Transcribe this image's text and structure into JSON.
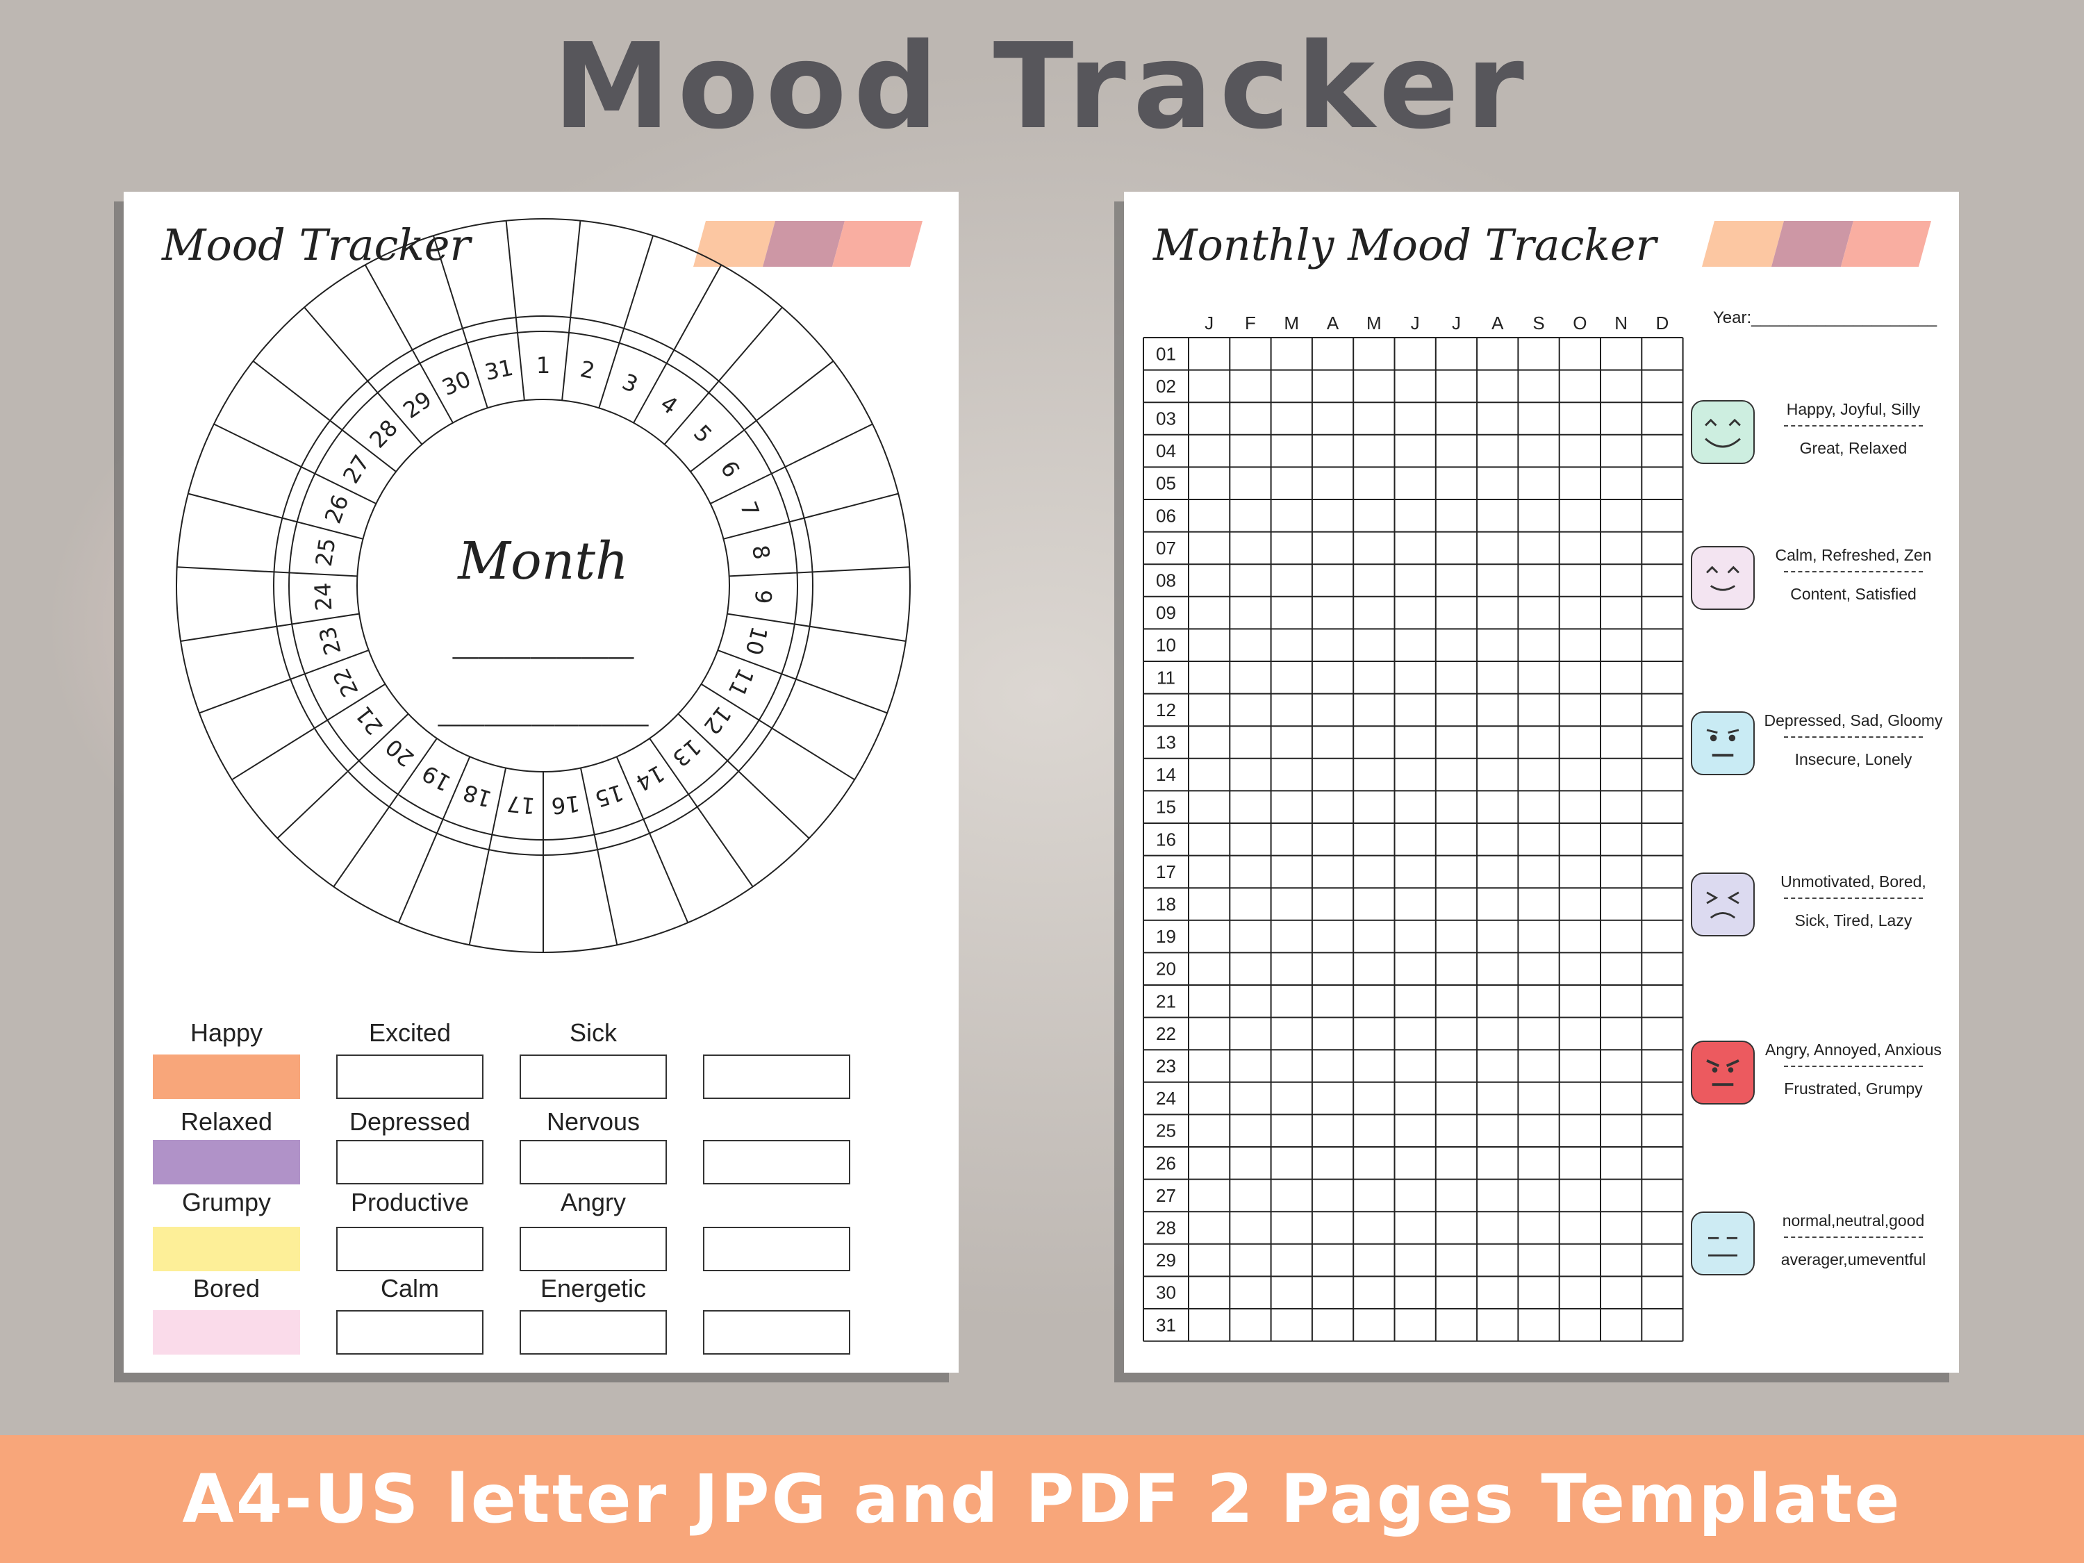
{
  "header": {
    "title": "Mood Tracker"
  },
  "left_page": {
    "title": "Mood Tracker",
    "center_label": "Month",
    "center_blank_1": "_______",
    "center_blank_2": "_________",
    "day_numbers": [
      "1",
      "2",
      "3",
      "4",
      "5",
      "6",
      "7",
      "8",
      "9",
      "10",
      "11",
      "12",
      "13",
      "14",
      "15",
      "16",
      "17",
      "18",
      "19",
      "20",
      "21",
      "22",
      "23",
      "24",
      "25",
      "26",
      "27",
      "28",
      "29",
      "30",
      "31"
    ],
    "moods": [
      {
        "label": "Happy",
        "color": "#f8a67a"
      },
      {
        "label": "Excited",
        "color": ""
      },
      {
        "label": "Sick",
        "color": ""
      },
      {
        "label": "",
        "color": ""
      },
      {
        "label": "Relaxed",
        "color": "#b092c8"
      },
      {
        "label": "Depressed",
        "color": ""
      },
      {
        "label": "Nervous",
        "color": ""
      },
      {
        "label": "",
        "color": ""
      },
      {
        "label": "Grumpy",
        "color": "#fdef98"
      },
      {
        "label": "Productive",
        "color": ""
      },
      {
        "label": "Angry",
        "color": ""
      },
      {
        "label": "",
        "color": ""
      },
      {
        "label": "Bored",
        "color": "#fadbea"
      },
      {
        "label": "Calm",
        "color": ""
      },
      {
        "label": "Energetic",
        "color": ""
      },
      {
        "label": "",
        "color": ""
      }
    ],
    "stripe_colors": [
      "#fcc7a2",
      "#cd97a5",
      "#f9aea1"
    ]
  },
  "right_page": {
    "title": "Monthly Mood Tracker",
    "year_label": "Year:____________________",
    "months": [
      "J",
      "F",
      "M",
      "A",
      "M",
      "J",
      "J",
      "A",
      "S",
      "O",
      "N",
      "D"
    ],
    "days": [
      "01",
      "02",
      "03",
      "04",
      "05",
      "06",
      "07",
      "08",
      "09",
      "10",
      "11",
      "12",
      "13",
      "14",
      "15",
      "16",
      "17",
      "18",
      "19",
      "20",
      "21",
      "22",
      "23",
      "24",
      "25",
      "26",
      "27",
      "28",
      "29",
      "30",
      "31"
    ],
    "legend": [
      {
        "line1": "Happy, Joyful, Silly",
        "line2": "Great, Relaxed",
        "color": "#cdeee0",
        "face": "happy-face-icon"
      },
      {
        "line1": "Calm, Refreshed, Zen",
        "line2": "Content, Satisfied",
        "color": "#f3e4f1",
        "face": "calm-face-icon"
      },
      {
        "line1": "Depressed, Sad, Gloomy",
        "line2": "Insecure, Lonely",
        "color": "#c9ebf4",
        "face": "sad-face-icon"
      },
      {
        "line1": "Unmotivated, Bored,",
        "line2": "Sick, Tired, Lazy",
        "color": "#dcdaf0",
        "face": "bored-face-icon"
      },
      {
        "line1": "Angry, Annoyed, Anxious",
        "line2": "Frustrated, Grumpy",
        "color": "#ec5a5f",
        "face": "angry-face-icon"
      },
      {
        "line1": "normal,neutral,good",
        "line2": "averager,umeventful",
        "color": "#cdebf3",
        "face": "neutral-face-icon"
      }
    ],
    "stripe_colors": [
      "#fcc7a2",
      "#cd97a5",
      "#f9aea1"
    ]
  },
  "banner": {
    "text": "A4-US letter JPG and PDF 2 Pages Template"
  }
}
